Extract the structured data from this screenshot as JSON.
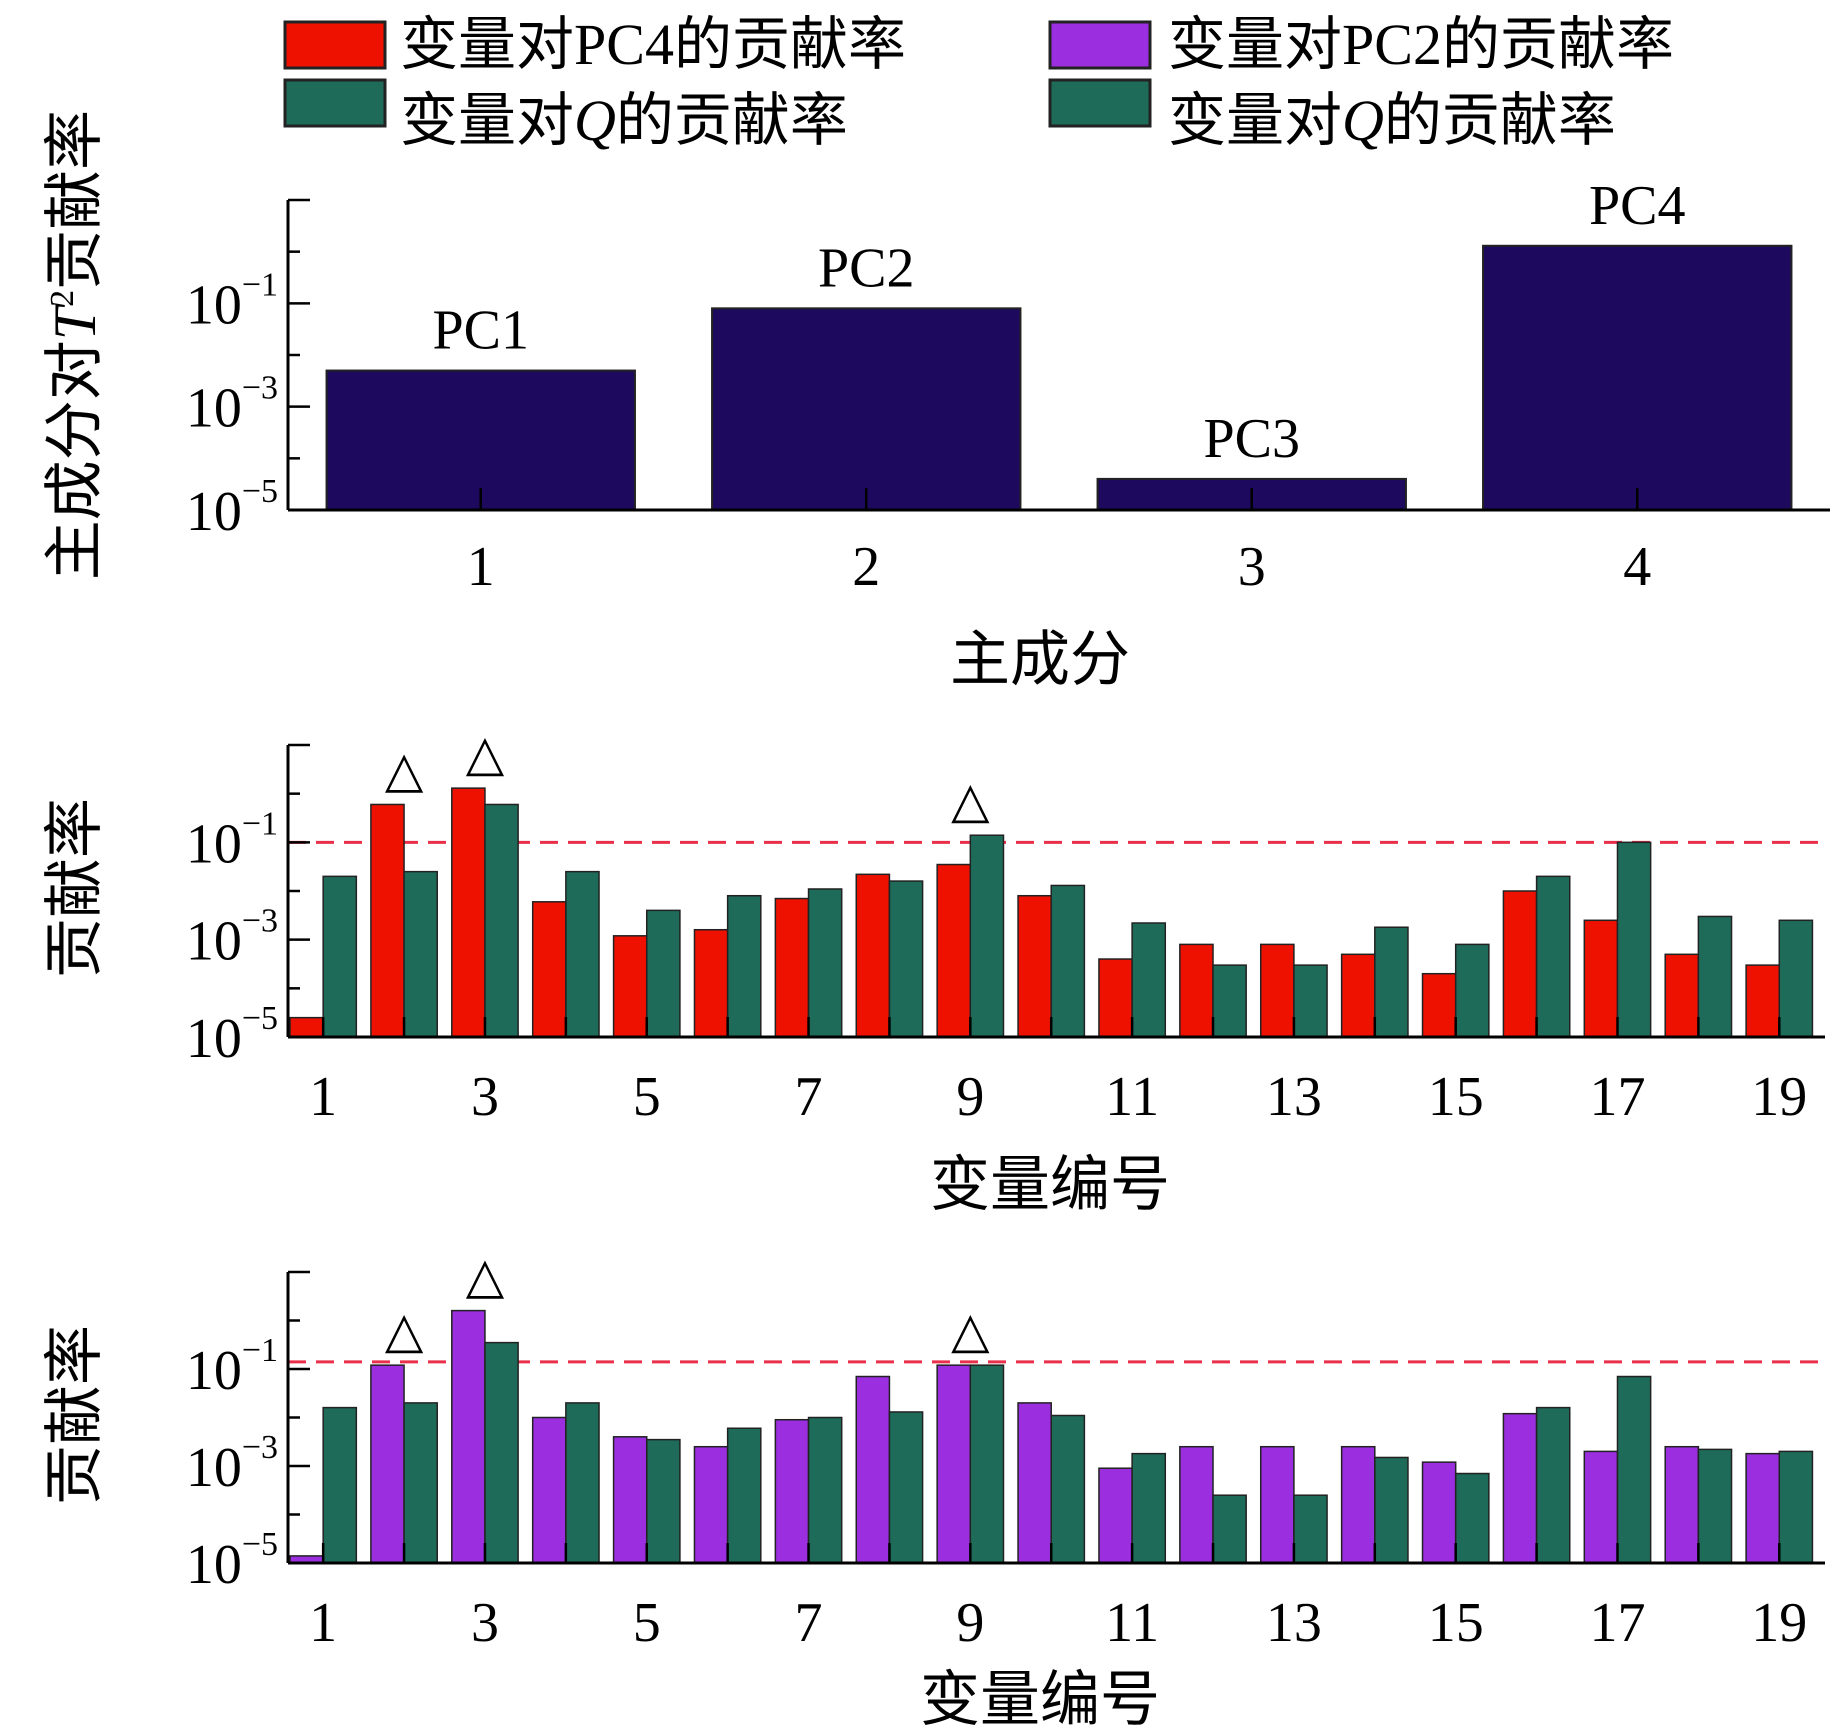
{
  "legend": [
    {
      "label": "变量对PC4的贡献率",
      "color": "#ee1100"
    },
    {
      "label": "变量对PC2的贡献率",
      "color": "#9b2fe0"
    },
    {
      "label_pre": "变量对",
      "label_italic": "Q",
      "label_post": "的贡献率",
      "color": "#1e6b5a"
    },
    {
      "label_pre": "变量对",
      "label_italic": "Q",
      "label_post": "的贡献率",
      "color": "#1e6b5a"
    }
  ],
  "chart_data": [
    {
      "type": "bar",
      "title": "",
      "xlabel": "主成分",
      "ylabel_pre": "主成分对",
      "ylabel_italic": "T",
      "ylabel_sup": "2",
      "ylabel_post": "贡献率",
      "yscale": "log",
      "ylim": [
        1e-05,
        10
      ],
      "yticks": [
        {
          "base": "10",
          "exp": "−1",
          "value": 0.1
        },
        {
          "base": "10",
          "exp": "−3",
          "value": 0.001
        },
        {
          "base": "10",
          "exp": "−5",
          "value": 1e-05
        }
      ],
      "categories": [
        "1",
        "2",
        "3",
        "4"
      ],
      "bar_labels": [
        "PC1",
        "PC2",
        "PC3",
        "PC4"
      ],
      "values": [
        0.005,
        0.08,
        4e-05,
        1.3
      ],
      "color": "#1d0a5e"
    },
    {
      "type": "bar",
      "title": "",
      "xlabel": "变量编号",
      "ylabel": "贡献率",
      "yscale": "log",
      "ylim": [
        1e-05,
        10
      ],
      "yticks": [
        {
          "base": "10",
          "exp": "−1",
          "value": 0.1
        },
        {
          "base": "10",
          "exp": "−3",
          "value": 0.001
        },
        {
          "base": "10",
          "exp": "−5",
          "value": 1e-05
        }
      ],
      "xtick_labels": [
        "1",
        "3",
        "5",
        "7",
        "9",
        "11",
        "13",
        "15",
        "17",
        "19"
      ],
      "categories": [
        1,
        2,
        3,
        4,
        5,
        6,
        7,
        8,
        9,
        10,
        11,
        12,
        13,
        14,
        15,
        16,
        17,
        18,
        19
      ],
      "threshold": 0.1,
      "markers_at": [
        2,
        3,
        9
      ],
      "marker_symbol": "△",
      "series": [
        {
          "name": "变量对PC4的贡献率",
          "color": "#ee1100",
          "values": [
            2.5e-05,
            0.6,
            1.3,
            0.006,
            0.0012,
            0.0016,
            0.007,
            0.022,
            0.035,
            0.008,
            0.0004,
            0.0008,
            0.0008,
            0.0005,
            0.0002,
            0.01,
            0.0025,
            0.0005,
            0.0003
          ]
        },
        {
          "name_pre": "变量对",
          "name_italic": "Q",
          "name_post": "的贡献率",
          "color": "#1e6b5a",
          "values": [
            0.02,
            0.025,
            0.6,
            0.025,
            0.004,
            0.008,
            0.011,
            0.016,
            0.14,
            0.013,
            0.0022,
            0.0003,
            0.0003,
            0.0018,
            0.0008,
            0.02,
            0.1,
            0.003,
            0.0025
          ]
        }
      ]
    },
    {
      "type": "bar",
      "title": "",
      "xlabel": "变量编号",
      "ylabel": "贡献率",
      "yscale": "log",
      "ylim": [
        1e-05,
        10
      ],
      "yticks": [
        {
          "base": "10",
          "exp": "−1",
          "value": 0.1
        },
        {
          "base": "10",
          "exp": "−3",
          "value": 0.001
        },
        {
          "base": "10",
          "exp": "−5",
          "value": 1e-05
        }
      ],
      "xtick_labels": [
        "1",
        "3",
        "5",
        "7",
        "9",
        "11",
        "13",
        "15",
        "17",
        "19"
      ],
      "categories": [
        1,
        2,
        3,
        4,
        5,
        6,
        7,
        8,
        9,
        10,
        11,
        12,
        13,
        14,
        15,
        16,
        17,
        18,
        19
      ],
      "threshold": 0.14,
      "markers_at": [
        2,
        3,
        9
      ],
      "marker_symbol": "△",
      "series": [
        {
          "name": "变量对PC2的贡献率",
          "color": "#9b2fe0",
          "values": [
            1.4e-05,
            0.12,
            1.6,
            0.01,
            0.004,
            0.0025,
            0.009,
            0.07,
            0.12,
            0.02,
            0.0009,
            0.0025,
            0.0025,
            0.0025,
            0.0012,
            0.012,
            0.002,
            0.0025,
            0.0018
          ]
        },
        {
          "name_pre": "变量对",
          "name_italic": "Q",
          "name_post": "的贡献率",
          "color": "#1e6b5a",
          "values": [
            0.016,
            0.02,
            0.35,
            0.02,
            0.0035,
            0.006,
            0.01,
            0.013,
            0.12,
            0.011,
            0.0018,
            0.00025,
            0.00025,
            0.0015,
            0.0007,
            0.016,
            0.07,
            0.0022,
            0.002
          ]
        }
      ]
    }
  ]
}
